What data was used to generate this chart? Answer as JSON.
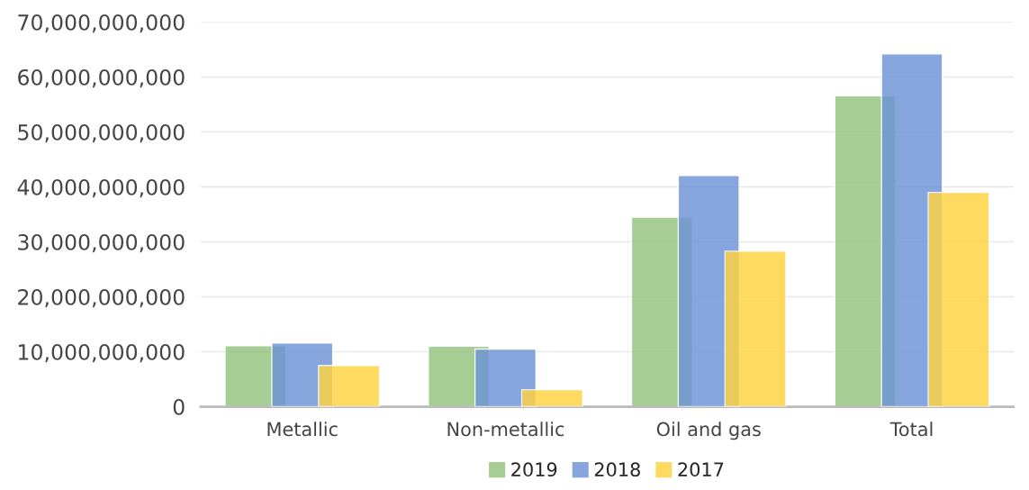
{
  "chart_data": {
    "type": "bar",
    "categories": [
      "Metallic",
      "Non-metallic",
      "Oil and gas",
      "Total"
    ],
    "series": [
      {
        "name": "2019",
        "color": "#93c47d",
        "values": [
          11100000000,
          11000000000,
          34500000000,
          56600000000
        ]
      },
      {
        "name": "2018",
        "color": "#6d93d6",
        "values": [
          11600000000,
          10500000000,
          42100000000,
          64200000000
        ]
      },
      {
        "name": "2017",
        "color": "#ffd23f",
        "values": [
          7500000000,
          3100000000,
          28300000000,
          39000000000
        ]
      }
    ],
    "ylim": [
      0,
      70000000000
    ],
    "yticks": [
      0,
      {
        "value": 10000000000,
        "label": "10,000,000,000"
      },
      {
        "value": 20000000000,
        "label": "20,000,000,000"
      },
      {
        "value": 30000000000,
        "label": "30,000,000,000"
      },
      {
        "value": 40000000000,
        "label": "40,000,000,000"
      },
      {
        "value": 50000000000,
        "label": "50,000,000,000"
      },
      {
        "value": 60000000000,
        "label": "60,000,000,000"
      },
      {
        "value": 70000000000,
        "label": "70,000,000,000"
      }
    ],
    "grid": "y",
    "legend": "bottom"
  }
}
